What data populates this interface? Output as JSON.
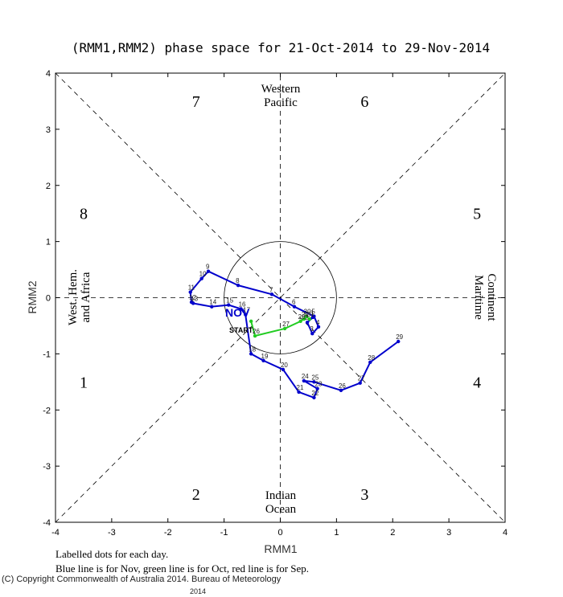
{
  "chart_data": {
    "type": "scatter",
    "title": "(RMM1,RMM2) phase space for 21-Oct-2014 to 29-Nov-2014",
    "xlabel": "RMM1",
    "ylabel": "RMM2",
    "xlim": [
      -4,
      4
    ],
    "ylim": [
      -4,
      4
    ],
    "x_ticks": [
      "-4",
      "-3",
      "-2",
      "-1",
      "0",
      "1",
      "2",
      "3",
      "4"
    ],
    "y_ticks": [
      "-4",
      "-3",
      "-2",
      "-1",
      "0",
      "1",
      "2",
      "3",
      "4"
    ],
    "phase_numbers": [
      "1",
      "2",
      "3",
      "4",
      "5",
      "6",
      "7",
      "8"
    ],
    "regions": {
      "top": [
        "Western",
        "Pacific"
      ],
      "bottom": [
        "Indian",
        "Ocean"
      ],
      "left": [
        "West. Hem.",
        "and Africa"
      ],
      "right": [
        "Maritime",
        "Continent"
      ]
    },
    "unit_circle_radius": 1,
    "start_label": "START",
    "month_label": "NOV",
    "series": [
      {
        "name": "Oct",
        "color": "#22cc22",
        "points": [
          {
            "label": "",
            "x": -0.52,
            "y": -0.42
          },
          {
            "label": "26",
            "x": -0.45,
            "y": -0.68
          },
          {
            "label": "27",
            "x": 0.08,
            "y": -0.55
          },
          {
            "label": "28",
            "x": 0.36,
            "y": -0.42
          },
          {
            "label": "29",
            "x": 0.42,
            "y": -0.38
          },
          {
            "label": "30",
            "x": 0.46,
            "y": -0.33
          },
          {
            "label": "31",
            "x": 0.52,
            "y": -0.38
          }
        ]
      },
      {
        "name": "Nov",
        "color": "#0000cc",
        "points": [
          {
            "label": "1",
            "x": 0.58,
            "y": -0.35
          },
          {
            "label": "2",
            "x": 0.48,
            "y": -0.44
          },
          {
            "label": "3",
            "x": 0.57,
            "y": -0.64
          },
          {
            "label": "4",
            "x": 0.68,
            "y": -0.52
          },
          {
            "label": "5",
            "x": 0.6,
            "y": -0.33
          },
          {
            "label": "6",
            "x": 0.25,
            "y": -0.16
          },
          {
            "label": "7",
            "x": -0.15,
            "y": 0.06
          },
          {
            "label": "8",
            "x": -0.75,
            "y": 0.22
          },
          {
            "label": "9",
            "x": -1.28,
            "y": 0.47
          },
          {
            "label": "10",
            "x": -1.4,
            "y": 0.34
          },
          {
            "label": "11",
            "x": -1.6,
            "y": 0.1
          },
          {
            "label": "12",
            "x": -1.58,
            "y": -0.08
          },
          {
            "label": "13",
            "x": -1.55,
            "y": -0.1
          },
          {
            "label": "14",
            "x": -1.22,
            "y": -0.16
          },
          {
            "label": "15",
            "x": -0.92,
            "y": -0.13
          },
          {
            "label": "16",
            "x": -0.7,
            "y": -0.2
          },
          {
            "label": "17",
            "x": -0.62,
            "y": -0.3
          },
          {
            "label": "18",
            "x": -0.52,
            "y": -1.0
          },
          {
            "label": "19",
            "x": -0.3,
            "y": -1.12
          },
          {
            "label": "20",
            "x": 0.05,
            "y": -1.28
          },
          {
            "label": "21",
            "x": 0.33,
            "y": -1.68
          },
          {
            "label": "22",
            "x": 0.6,
            "y": -1.78
          },
          {
            "label": "23",
            "x": 0.66,
            "y": -1.62
          },
          {
            "label": "24",
            "x": 0.42,
            "y": -1.48
          },
          {
            "label": "25",
            "x": 0.6,
            "y": -1.5
          },
          {
            "label": "26",
            "x": 1.08,
            "y": -1.65
          },
          {
            "label": "27",
            "x": 1.42,
            "y": -1.52
          },
          {
            "label": "28",
            "x": 1.6,
            "y": -1.15
          },
          {
            "label": "29",
            "x": 2.1,
            "y": -0.78
          }
        ]
      }
    ],
    "note_line1": "Labelled dots for each day.",
    "note_line2": "Blue line is for Nov, green line is for Oct, red line is for Sep."
  },
  "footer": {
    "copyright": "(C) Copyright Commonwealth of Australia 2014. Bureau of Meteorology",
    "year": "2014"
  }
}
